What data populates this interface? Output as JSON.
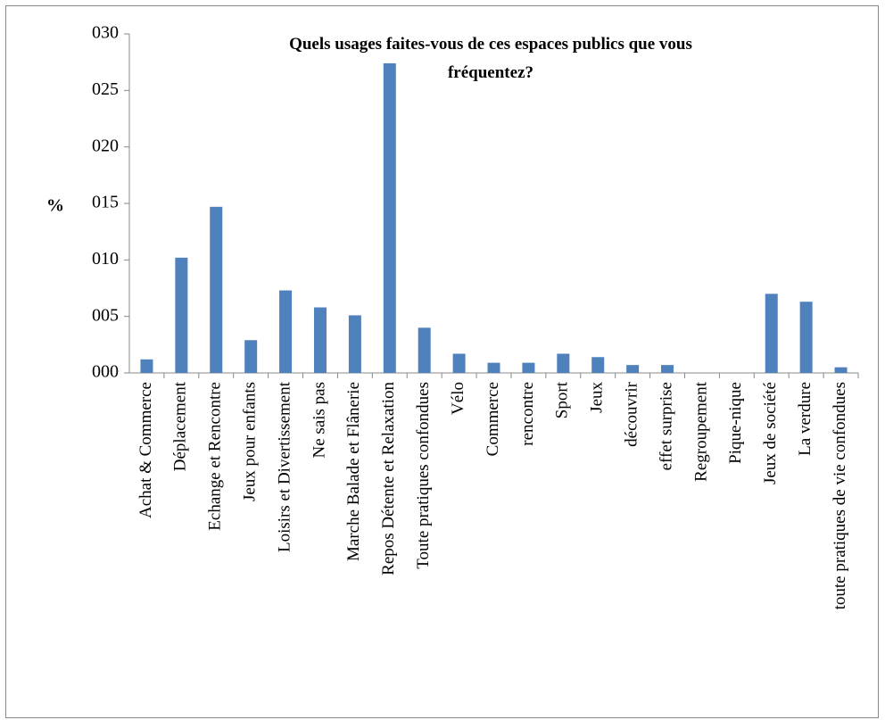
{
  "chart_data": {
    "type": "bar",
    "title": "Quels usages faites-vous de ces espaces publics que vous fréquentez?",
    "y_label": "%",
    "categories": [
      "Achat & Commerce",
      "Déplacement",
      "Echange et Rencontre",
      "Jeux pour enfants",
      "Loisirs et Divertissement",
      "Ne sais pas",
      "Marche Balade et Flânerie",
      "Repos Détente et Relaxation",
      "Toute pratiques confondues",
      "Vélo",
      "Commerce",
      "rencontre",
      "Sport",
      "Jeux",
      "découvrir",
      "effet surprise",
      "Regroupement",
      "Pique-nique",
      "Jeux de société",
      "La verdure",
      "toute pratiques de vie confondues"
    ],
    "values": [
      1.2,
      10.2,
      14.7,
      2.9,
      7.3,
      5.8,
      5.1,
      27.4,
      4.0,
      1.7,
      0.9,
      0.9,
      1.7,
      1.4,
      0.7,
      0.7,
      0,
      0,
      7.0,
      6.3,
      0.5
    ],
    "color": "#4f81bd",
    "ylim": [
      0,
      30
    ],
    "yticks": [
      {
        "value": 0,
        "label": "000"
      },
      {
        "value": 5,
        "label": "005"
      },
      {
        "value": 10,
        "label": "010"
      },
      {
        "value": 15,
        "label": "015"
      },
      {
        "value": 20,
        "label": "020"
      },
      {
        "value": 25,
        "label": "025"
      },
      {
        "value": 30,
        "label": "030"
      }
    ],
    "grid": false
  }
}
